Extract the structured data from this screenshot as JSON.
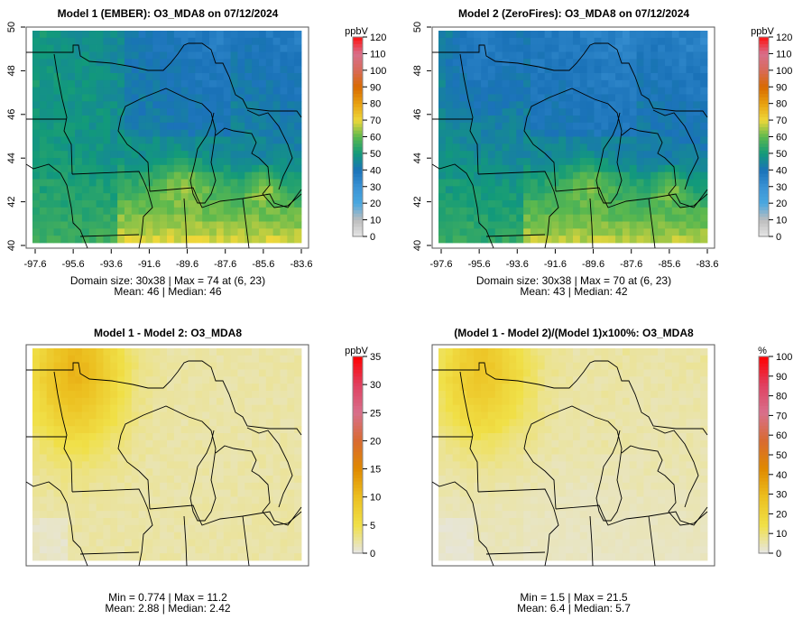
{
  "chart_data": [
    {
      "type": "heatmap",
      "title": "Model 1 (EMBER): O3_MDA8 on 07/12/2024",
      "colorbar_label": "ppbV",
      "colorbar_ticks": [
        "0",
        "10",
        "20",
        "30",
        "40",
        "50",
        "60",
        "70",
        "80",
        "90",
        "100",
        "110",
        "120"
      ],
      "colorbar_range": [
        0,
        120
      ],
      "x_ticks": [
        "-97.6",
        "-95.6",
        "-93.6",
        "-91.6",
        "-89.6",
        "-87.6",
        "-85.6",
        "-83.6"
      ],
      "y_ticks": [
        "40",
        "42",
        "44",
        "46",
        "48",
        "50"
      ],
      "stats_line1": "Domain size: 30x38 | Max = 74 at (6, 23)",
      "stats_line2": "Mean: 46 |  Median: 46"
    },
    {
      "type": "heatmap",
      "title": "Model 2 (ZeroFires): O3_MDA8 on 07/12/2024",
      "colorbar_label": "ppbV",
      "colorbar_ticks": [
        "0",
        "10",
        "20",
        "30",
        "40",
        "50",
        "60",
        "70",
        "80",
        "90",
        "100",
        "110",
        "120"
      ],
      "colorbar_range": [
        0,
        120
      ],
      "x_ticks": [
        "-97.6",
        "-95.6",
        "-93.6",
        "-91.6",
        "-89.6",
        "-87.6",
        "-85.6",
        "-83.6"
      ],
      "y_ticks": [
        "40",
        "42",
        "44",
        "46",
        "48",
        "50"
      ],
      "stats_line1": "Domain size: 30x38 | Max = 70 at (6, 23)",
      "stats_line2": "Mean: 43 |  Median: 42"
    },
    {
      "type": "heatmap",
      "title": "Model 1 - Model 2: O3_MDA8",
      "colorbar_label": "ppbV",
      "colorbar_ticks": [
        "0",
        "5",
        "10",
        "15",
        "20",
        "25",
        "30",
        "35"
      ],
      "colorbar_range": [
        0,
        35
      ],
      "stats_line1": "Min = 0.774 | Max = 11.2",
      "stats_line2": "Mean: 2.88 |  Median: 2.42"
    },
    {
      "type": "heatmap",
      "title": "(Model 1 - Model 2)/(Model 1)x100%: O3_MDA8",
      "colorbar_label": "%",
      "colorbar_ticks": [
        "0",
        "10",
        "20",
        "30",
        "40",
        "50",
        "60",
        "70",
        "80",
        "90",
        "100"
      ],
      "colorbar_range": [
        0,
        100
      ],
      "stats_line1": "Min = 1.5 | Max = 21.5",
      "stats_line2": "Mean: 6.4 |  Median: 5.7"
    }
  ],
  "colors": {
    "model_scale": [
      "#e6e6e6",
      "#bdbdbd",
      "#4aa8e0",
      "#3a92d4",
      "#1a72b8",
      "#129a7a",
      "#5bb84e",
      "#eed83a",
      "#e8a010",
      "#d86a00",
      "#d86a58",
      "#d8708c",
      "#ff1010"
    ],
    "diff_scale": [
      "#e6e6e6",
      "#f0e048",
      "#ecc020",
      "#e08a00",
      "#d86a30",
      "#d8708c",
      "#e04060",
      "#ff0000"
    ]
  }
}
